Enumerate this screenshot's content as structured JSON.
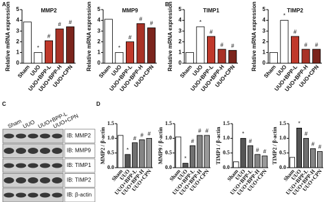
{
  "panel_labels": [
    "A",
    "B",
    "C",
    "D"
  ],
  "chart_data": [
    {
      "type": "bar",
      "title": "MMP2",
      "y_label": "Relative mRNA expression",
      "categories": [
        "Sham",
        "UUO",
        "UUO+BPP-L",
        "UUO+BPP-H",
        "UUO+CPN"
      ],
      "values": [
        3.85,
        1.0,
        2.1,
        3.2,
        3.4
      ],
      "annotations": [
        null,
        "*",
        "#",
        "#",
        "#"
      ],
      "colors": [
        "#ffffff",
        "#ffffff",
        "#c0392b",
        "#a93226",
        "#7b241c"
      ],
      "ylim": [
        0,
        5
      ],
      "yticks": [
        0,
        1,
        2,
        3,
        4,
        5
      ]
    },
    {
      "type": "bar",
      "title": "MMP9",
      "y_label": "Relative mRNA expression",
      "categories": [
        "Sham",
        "UUO",
        "UUO+BPP-L",
        "UUO+BPP-H",
        "UUO+CPN"
      ],
      "values": [
        4.1,
        1.0,
        2.0,
        3.7,
        3.3
      ],
      "annotations": [
        null,
        "*",
        "#",
        "#",
        "#"
      ],
      "colors": [
        "#ffffff",
        "#ffffff",
        "#c0392b",
        "#a93226",
        "#7b241c"
      ],
      "ylim": [
        0,
        5
      ],
      "yticks": [
        0,
        1,
        2,
        3,
        4,
        5
      ]
    },
    {
      "type": "bar",
      "title": "TIMP1",
      "y_label": "Relative mRNA expression",
      "categories": [
        "Sham",
        "UUO",
        "UUO+BPP-L",
        "UUO+BPP-H",
        "UUO+CPN"
      ],
      "values": [
        1.0,
        3.4,
        2.5,
        1.3,
        1.2
      ],
      "annotations": [
        null,
        "*",
        "#",
        "#",
        "#"
      ],
      "colors": [
        "#ffffff",
        "#ffffff",
        "#c0392b",
        "#a93226",
        "#7b241c"
      ],
      "ylim": [
        0,
        5
      ],
      "yticks": [
        0,
        1,
        2,
        3,
        4,
        5
      ]
    },
    {
      "type": "bar",
      "title": "TIMP2",
      "y_label": "Relative mRNA expression",
      "categories": [
        "Sham",
        "UUO",
        "UUO+BPP-L",
        "UUO+BPP-H",
        "UUO+CPN"
      ],
      "values": [
        1.0,
        4.0,
        2.5,
        1.3,
        1.3
      ],
      "annotations": [
        null,
        "*",
        "#",
        "#",
        "#"
      ],
      "colors": [
        "#ffffff",
        "#ffffff",
        "#c0392b",
        "#a93226",
        "#7b241c"
      ],
      "ylim": [
        0,
        5
      ],
      "yticks": [
        0,
        1,
        2,
        3,
        4,
        5
      ]
    },
    {
      "type": "bar",
      "y_label": "MMP2 / β-actin",
      "categories": [
        "Sham",
        "UUO",
        "UUO+BPP-L",
        "UUO+BPP-H",
        "UUO+CPN"
      ],
      "values": [
        1.1,
        0.45,
        0.85,
        0.95,
        1.0
      ],
      "annotations": [
        null,
        "*",
        "#",
        "#",
        "#"
      ],
      "colors": [
        "#ffffff",
        "#555555",
        "#707070",
        "#858585",
        "#9a9a9a"
      ],
      "ylim": [
        0,
        1.5
      ],
      "yticks": [
        {
          "value": 0,
          "label": "0.0"
        },
        0.5,
        {
          "value": 1,
          "label": "1.0"
        },
        1.5
      ]
    },
    {
      "type": "bar",
      "y_label": "MMP9 / β-actin",
      "categories": [
        "Sham",
        "UUO",
        "UUO+BPP-L",
        "UUO+BPP-H",
        "UUO+CPN"
      ],
      "values": [
        1.05,
        0.15,
        0.75,
        1.1,
        1.1
      ],
      "annotations": [
        null,
        "*",
        "#",
        "#",
        "#"
      ],
      "colors": [
        "#ffffff",
        "#555555",
        "#707070",
        "#858585",
        "#9a9a9a"
      ],
      "ylim": [
        0,
        1.5
      ],
      "yticks": [
        {
          "value": 0,
          "label": "0.0"
        },
        0.5,
        {
          "value": 1,
          "label": "1.0"
        },
        1.5
      ]
    },
    {
      "type": "bar",
      "y_label": "TIMP1 / β-actin",
      "categories": [
        "Sham",
        "UUO",
        "UUO+BPP-L",
        "UUO+BPP-H",
        "UUO+CPN"
      ],
      "values": [
        0.2,
        1.0,
        0.75,
        0.45,
        0.4
      ],
      "annotations": [
        null,
        "*",
        "#",
        "#",
        "#"
      ],
      "colors": [
        "#ffffff",
        "#555555",
        "#707070",
        "#858585",
        "#9a9a9a"
      ],
      "ylim": [
        0,
        1.5
      ],
      "yticks": [
        {
          "value": 0,
          "label": "0.0"
        },
        0.5,
        {
          "value": 1,
          "label": "1.0"
        },
        1.5
      ]
    },
    {
      "type": "bar",
      "y_label": "TIMP2 / β-actin",
      "categories": [
        "Sham",
        "UUO",
        "UUO+BPP-L",
        "UUO+BPP-H",
        "UUO+CPN"
      ],
      "values": [
        0.35,
        1.35,
        1.0,
        0.65,
        0.55
      ],
      "annotations": [
        null,
        "*",
        "#",
        "#",
        "#"
      ],
      "colors": [
        "#ffffff",
        "#555555",
        "#707070",
        "#858585",
        "#9a9a9a"
      ],
      "ylim": [
        0,
        1.5
      ],
      "yticks": [
        {
          "value": 0,
          "label": "0.0"
        },
        0.5,
        {
          "value": 1,
          "label": "1.0"
        },
        1.5
      ]
    }
  ],
  "blot": {
    "lanes": [
      "Sham",
      "UUO",
      "UUO+BPP-L",
      "UUO+CPN"
    ],
    "bands": [
      "IB: MMP2",
      "IB: MMP9",
      "IB: TIMP1",
      "IB: TIMP2",
      "IB: β-actin"
    ]
  }
}
